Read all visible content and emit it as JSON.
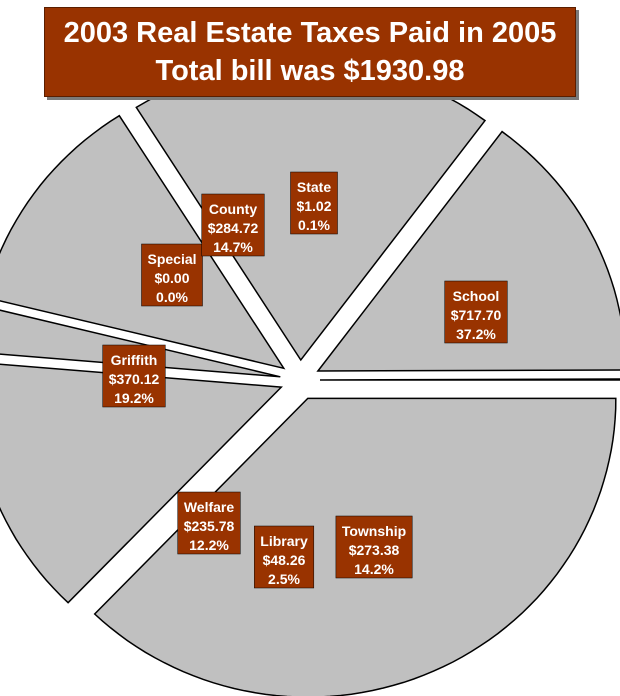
{
  "header": {
    "title_line1": "2003 Real Estate Taxes Paid in 2005",
    "title_line2": "Total bill was $1930.98"
  },
  "colors": {
    "slice_fill": "#c0c0c0",
    "label_bg": "#993300",
    "label_text": "#ffffff",
    "title_bg": "#993300"
  },
  "chart_data": {
    "type": "pie",
    "title": "2003 Real Estate Taxes Paid in 2005",
    "subtitle": "Total bill was $1930.98",
    "exploded": true,
    "slices": [
      {
        "name": "School",
        "amount": "$717.70",
        "percent_label": "37.2%",
        "value": 717.7
      },
      {
        "name": "Township",
        "amount": "$273.38",
        "percent_label": "14.2%",
        "value": 273.38
      },
      {
        "name": "Library",
        "amount": "$48.26",
        "percent_label": "2.5%",
        "value": 48.26
      },
      {
        "name": "Welfare",
        "amount": "$235.78",
        "percent_label": "12.2%",
        "value": 235.78
      },
      {
        "name": "Griffith",
        "amount": "$370.12",
        "percent_label": "19.2%",
        "value": 370.12
      },
      {
        "name": "Special",
        "amount": "$0.00",
        "percent_label": "0.0%",
        "value": 0.0
      },
      {
        "name": "County",
        "amount": "$284.72",
        "percent_label": "14.7%",
        "value": 284.72
      },
      {
        "name": "State",
        "amount": "$1.02",
        "percent_label": "0.1%",
        "value": 1.02
      }
    ]
  }
}
